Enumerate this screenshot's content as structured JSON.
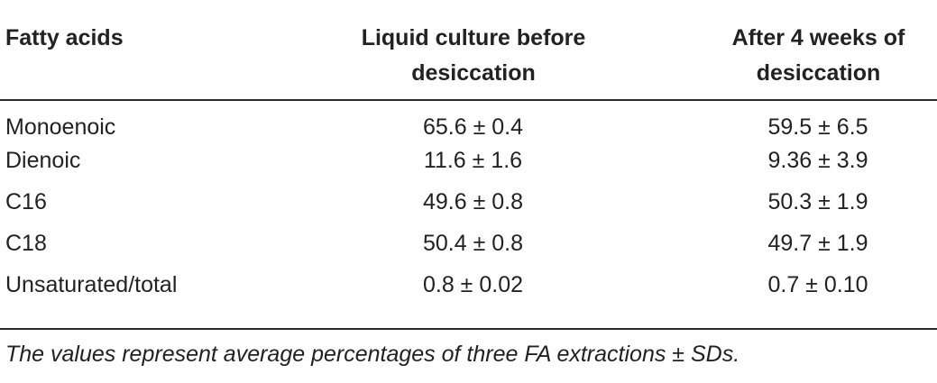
{
  "table": {
    "headers": [
      {
        "id": "fatty-acids",
        "text": "Fatty acids"
      },
      {
        "id": "liquid-culture",
        "text": "Liquid culture before desiccation"
      },
      {
        "id": "after-desiccation",
        "text": "After 4 weeks of desiccation"
      }
    ],
    "header_lines": {
      "col1": "Fatty acids",
      "col2_line1": "Liquid culture before",
      "col2_line2": "desiccation",
      "col3_line1": "After 4 weeks of",
      "col3_line2": "desiccation"
    },
    "rows": [
      {
        "name": "Monoenoic",
        "before": "65.6 ± 0.4",
        "after": "59.5 ± 6.5"
      },
      {
        "name": "Dienoic",
        "before": "11.6 ± 1.6",
        "after": "9.36 ± 3.9"
      },
      {
        "name": "C16",
        "before": "49.6 ± 0.8",
        "after": "50.3 ± 1.9"
      },
      {
        "name": "C18",
        "before": "50.4 ± 0.8",
        "after": "49.7 ± 1.9"
      },
      {
        "name": "Unsaturated/total",
        "before": "0.8 ± 0.02",
        "after": "0.7 ± 0.10"
      }
    ]
  },
  "footnote": "The values represent average percentages of three FA extractions ± SDs."
}
